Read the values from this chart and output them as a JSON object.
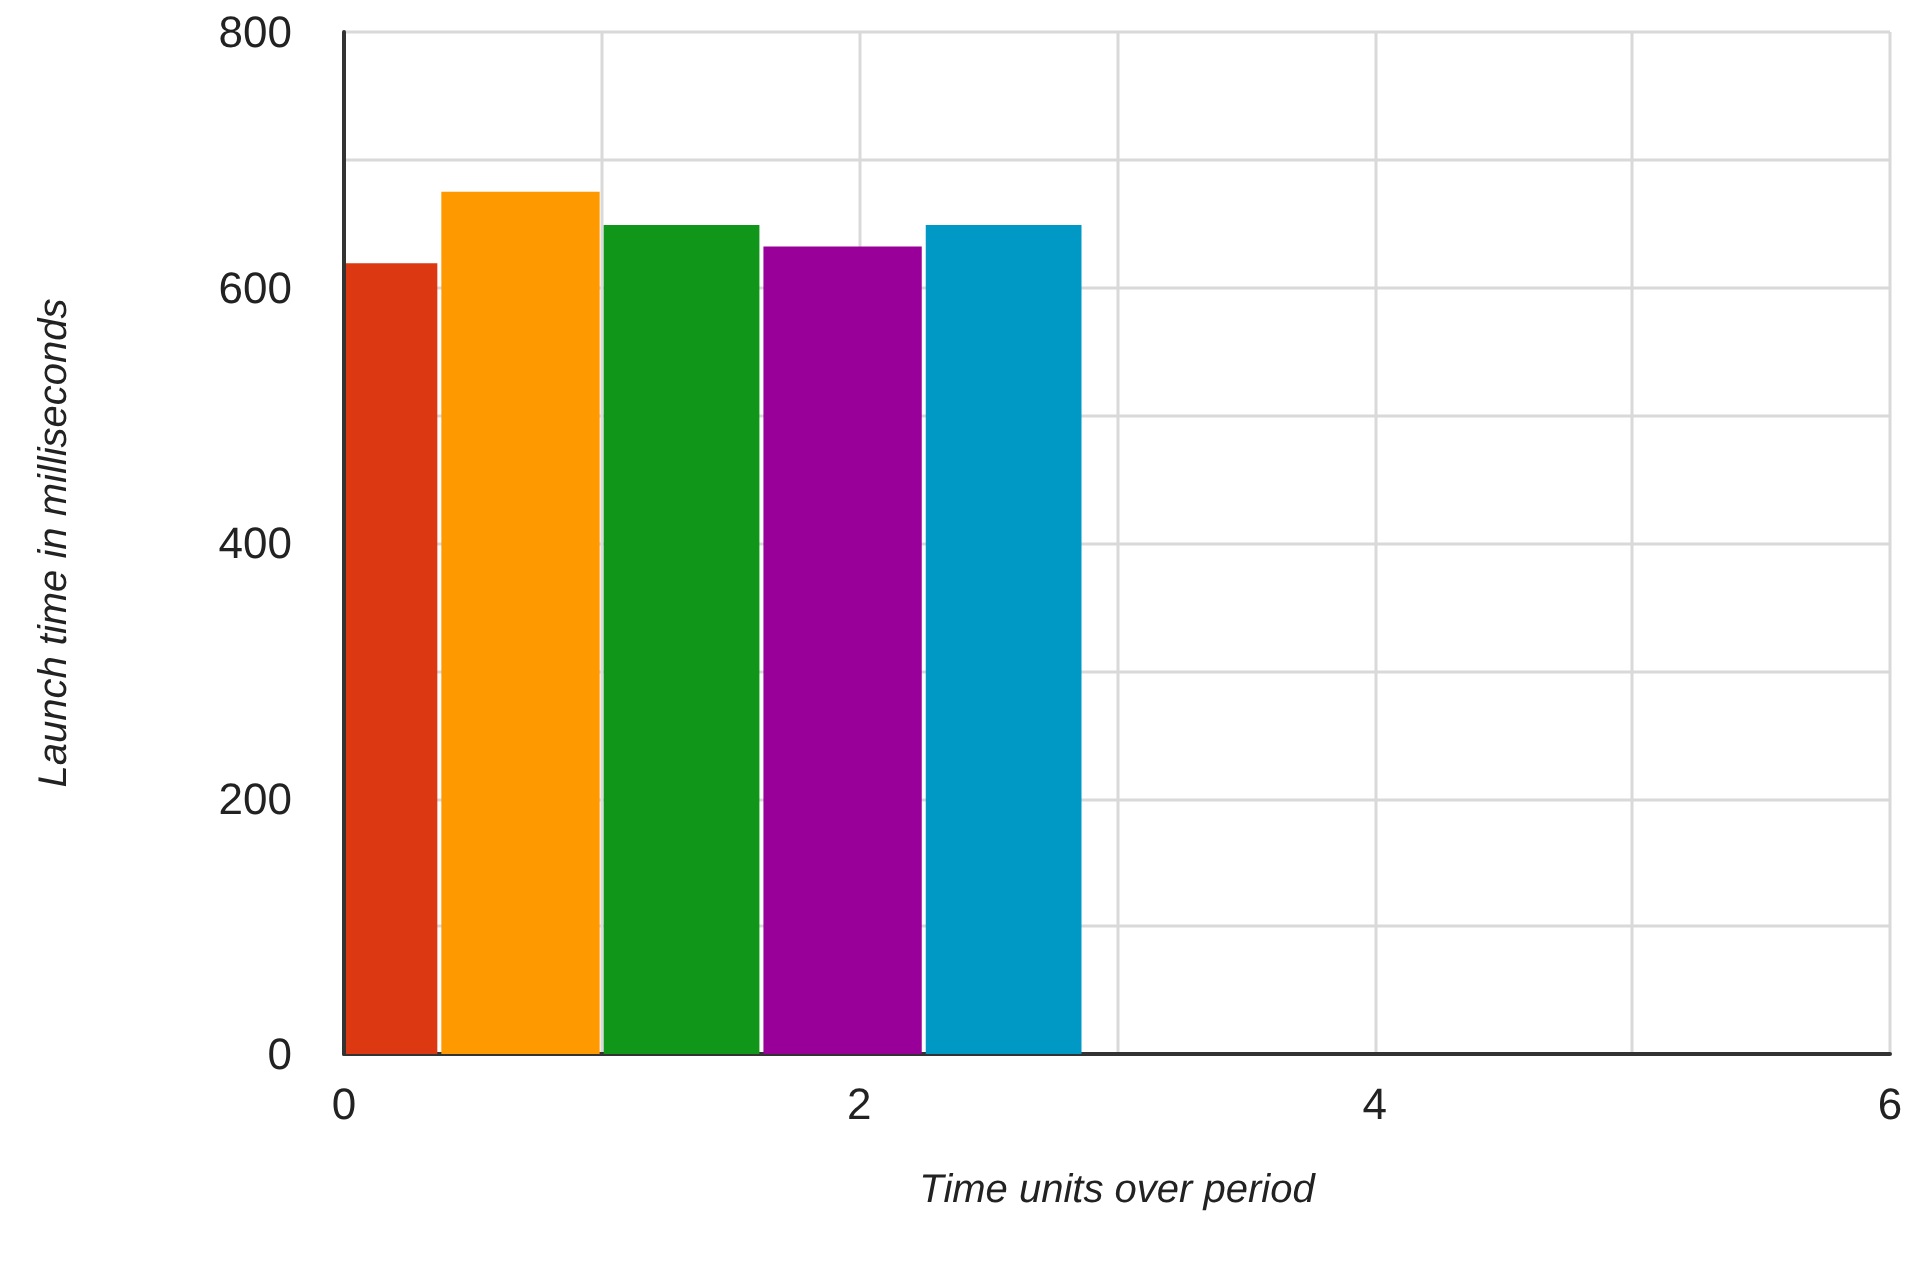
{
  "chart_data": {
    "type": "histogram",
    "xlabel": "Time units over period",
    "ylabel": "Launch time in milliseconds",
    "bins": [
      0,
      0.37,
      1.0,
      1.62,
      2.25,
      2.87
    ],
    "values": [
      619,
      675,
      649,
      632,
      649
    ],
    "colors": [
      "#dc3912",
      "#ff9900",
      "#109618",
      "#990099",
      "#0099c6"
    ],
    "xlim": [
      0,
      6
    ],
    "xticks": [
      0,
      {
        "value": 1,
        "label": null
      },
      2,
      {
        "value": 3,
        "label": null
      },
      4,
      {
        "value": 5,
        "label": null
      },
      6
    ],
    "ylim": [
      0,
      800
    ],
    "yticks": [
      0,
      {
        "value": 100,
        "label": null
      },
      200,
      {
        "value": 300,
        "label": null
      },
      400,
      {
        "value": 500,
        "label": null
      },
      600,
      {
        "value": 700,
        "label": null
      },
      800
    ],
    "grid": true
  }
}
